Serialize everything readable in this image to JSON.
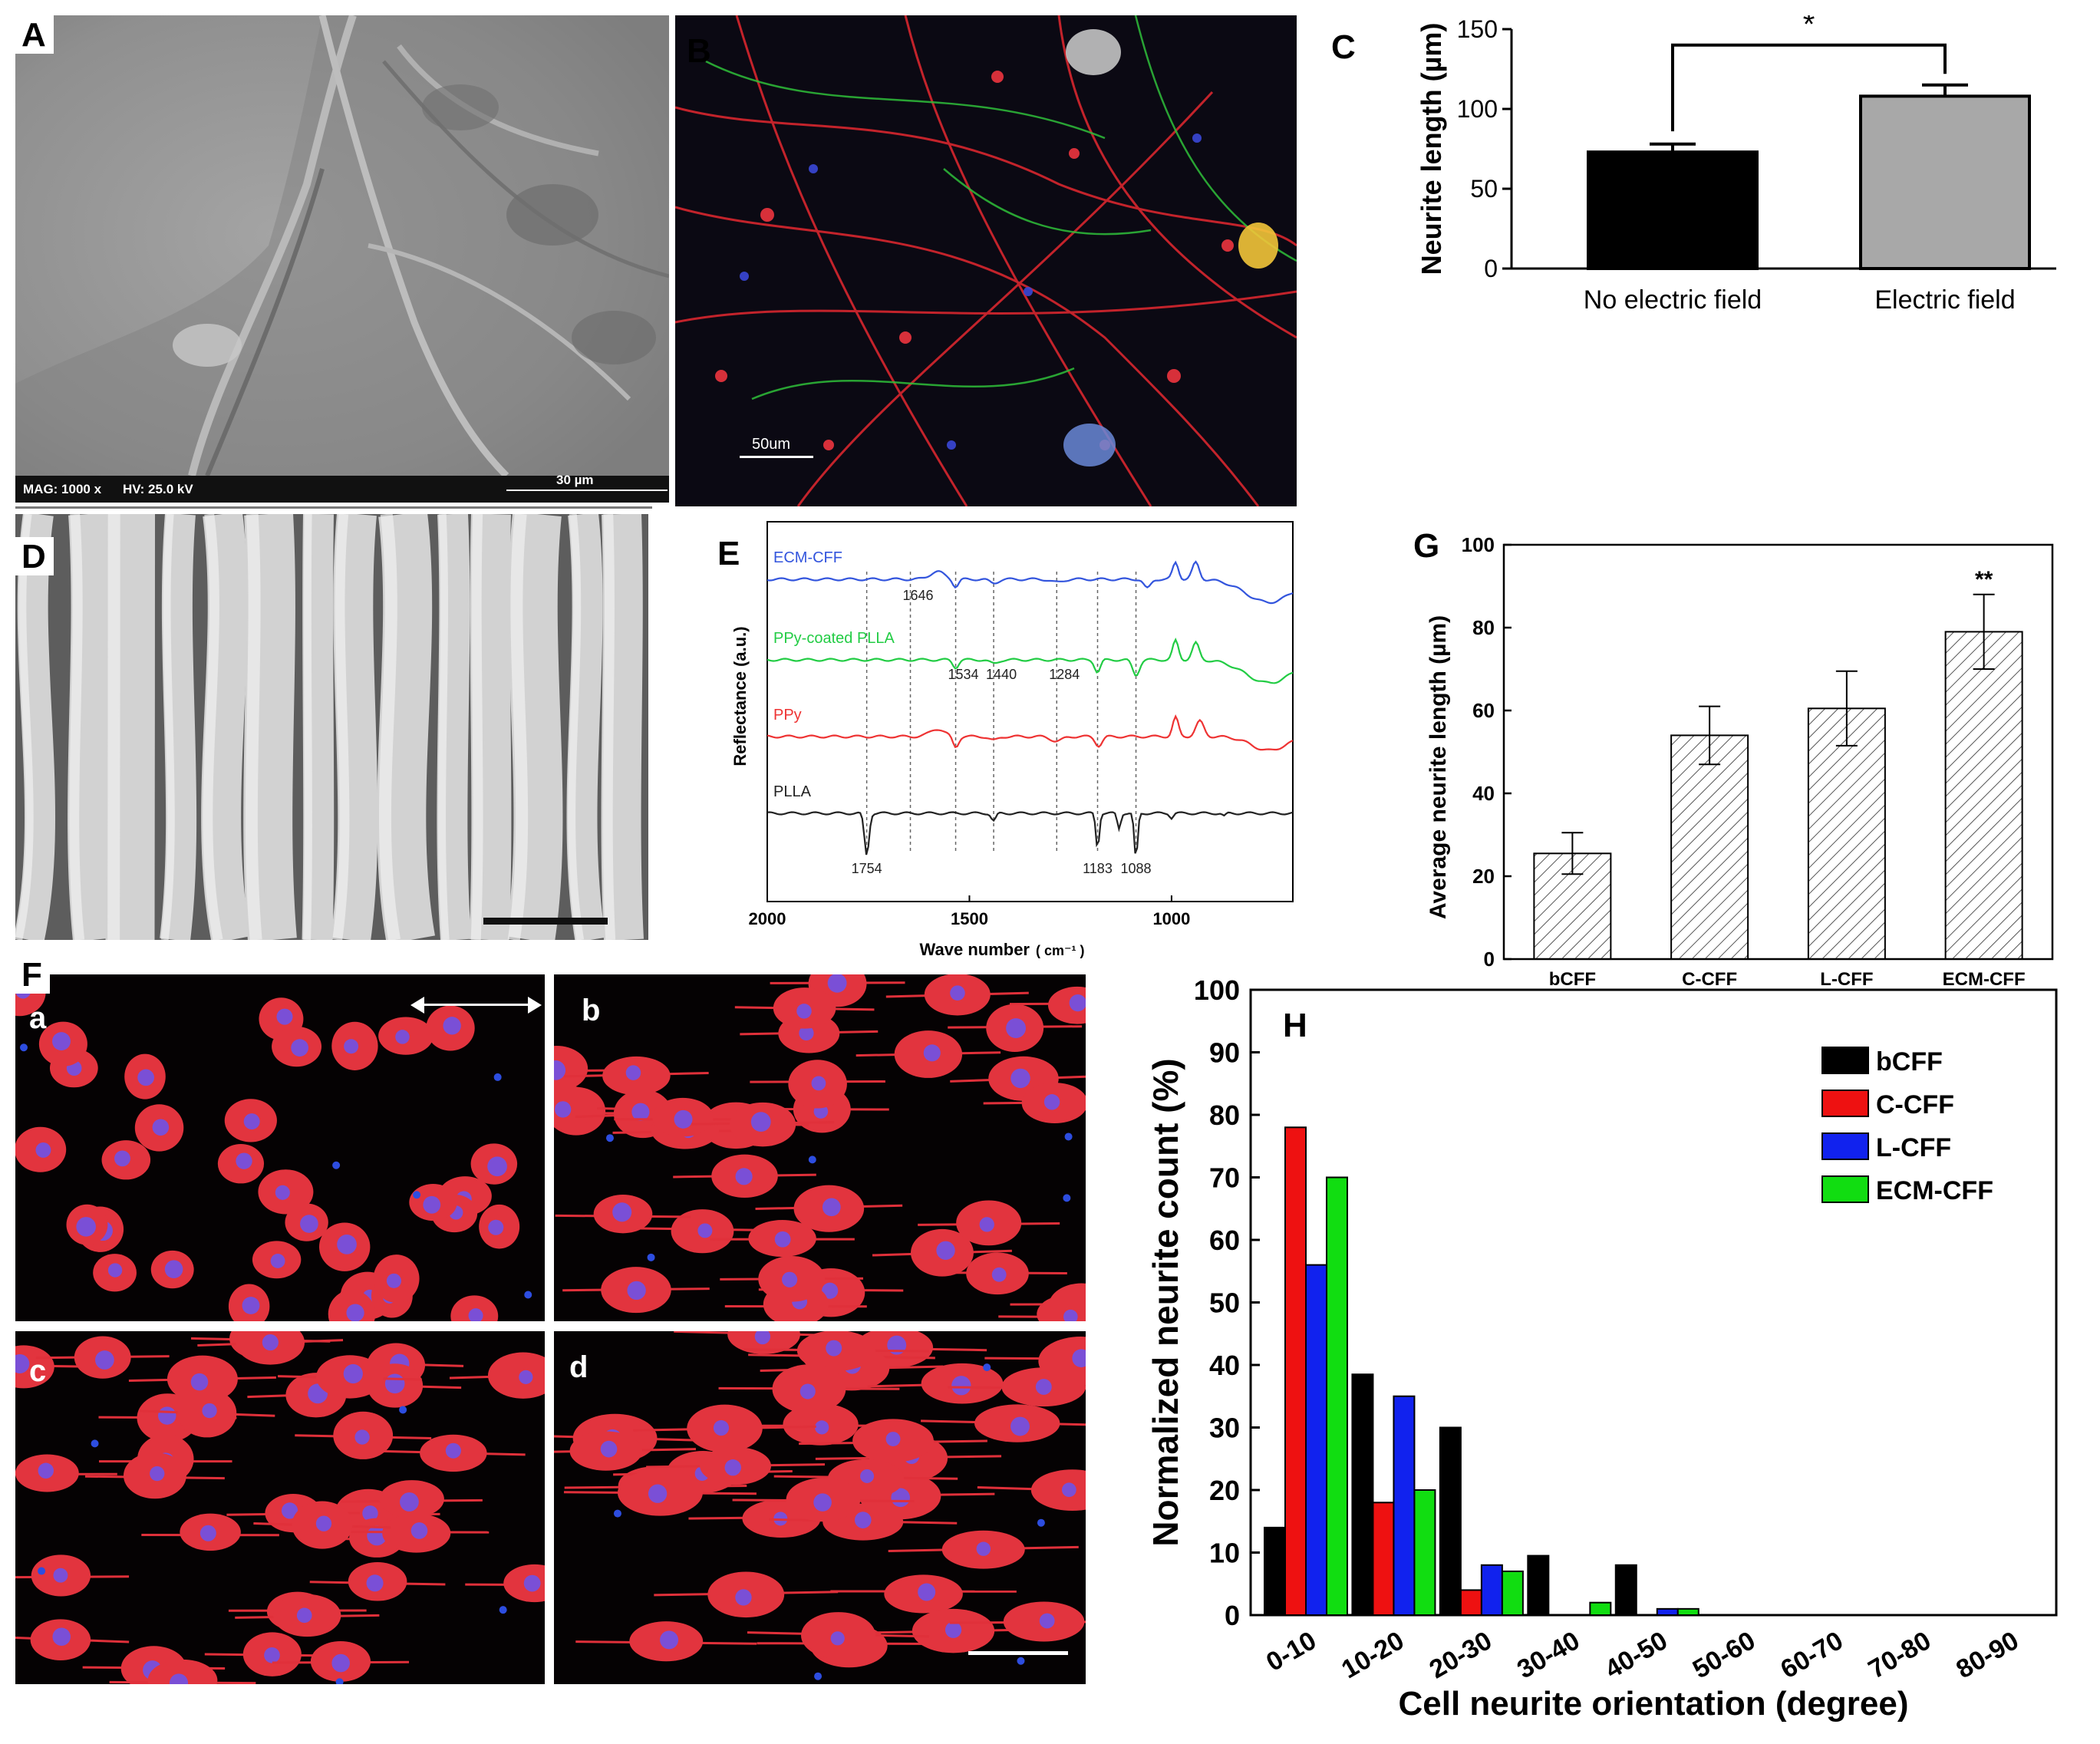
{
  "panels": {
    "A": {
      "label": "A",
      "info_bar": {
        "mag": "MAG: 1000 x",
        "hv": "HV: 25.0 kV",
        "scale": "30 µm"
      }
    },
    "B": {
      "label": "B",
      "scale": "50um"
    },
    "C": {
      "label": "C"
    },
    "D": {
      "label": "D"
    },
    "E": {
      "label": "E"
    },
    "F": {
      "label": "F",
      "subpanels": [
        "a",
        "b",
        "c",
        "d"
      ]
    },
    "G": {
      "label": "G"
    },
    "H": {
      "label": "H"
    }
  },
  "chart_data": [
    {
      "id": "C",
      "type": "bar",
      "categories": [
        "No electric field",
        "Electric field"
      ],
      "values": [
        73,
        108
      ],
      "errors": [
        5,
        7
      ],
      "colors": [
        "#000000",
        "#a8a8a8"
      ],
      "ylabel": "Neurite length (µm)",
      "ylim": [
        0,
        150
      ],
      "yticks": [
        "0",
        "50",
        "100",
        "150"
      ],
      "significance": "*"
    },
    {
      "id": "E",
      "type": "line",
      "xlabel": "Wave number",
      "xunit": "( cm⁻¹ )",
      "ylabel": "Reflectance (a.u.)",
      "xlim": [
        2000,
        700
      ],
      "xticks": [
        "2000",
        "1500",
        "1000"
      ],
      "series": [
        {
          "name": "ECM-CFF",
          "color": "#3355dd"
        },
        {
          "name": "PPy-coated PLLA",
          "color": "#22cc44"
        },
        {
          "name": "PPy",
          "color": "#ee3333"
        },
        {
          "name": "PLLA",
          "color": "#222222"
        }
      ],
      "peak_labels": [
        "1646",
        "1534",
        "1440",
        "1284",
        "1754",
        "1183",
        "1088"
      ]
    },
    {
      "id": "G",
      "type": "bar",
      "categories": [
        "bCFF",
        "C-CFF",
        "L-CFF",
        "ECM-CFF"
      ],
      "values": [
        25.5,
        54,
        60.5,
        79
      ],
      "errors": [
        5,
        7,
        9,
        9
      ],
      "ylabel": "Average neurite length (µm)",
      "ylim": [
        0,
        100
      ],
      "yticks": [
        "0",
        "20",
        "40",
        "60",
        "80",
        "100"
      ],
      "significance": "**"
    },
    {
      "id": "H",
      "type": "bar",
      "categories": [
        "0-10",
        "10-20",
        "20-30",
        "30-40",
        "40-50",
        "50-60",
        "60-70",
        "70-80",
        "80-90"
      ],
      "series": [
        {
          "name": "bCFF",
          "color": "#000000",
          "values": [
            14,
            38.5,
            30,
            9.5,
            8,
            0,
            0,
            0,
            0
          ]
        },
        {
          "name": "C-CFF",
          "color": "#ee1111",
          "values": [
            78,
            18,
            4,
            0,
            0,
            0,
            0,
            0,
            0
          ]
        },
        {
          "name": "L-CFF",
          "color": "#1122ee",
          "values": [
            56,
            35,
            8,
            0,
            1,
            0,
            0,
            0,
            0
          ]
        },
        {
          "name": "ECM-CFF",
          "color": "#11dd11",
          "values": [
            70,
            20,
            7,
            2,
            1,
            0,
            0,
            0,
            0
          ]
        }
      ],
      "xlabel": "Cell neurite orientation (degree)",
      "ylabel": "Normalized neurite count (%)",
      "ylim": [
        0,
        100
      ],
      "yticks": [
        "0",
        "10",
        "20",
        "30",
        "40",
        "50",
        "60",
        "70",
        "80",
        "90",
        "100"
      ]
    }
  ]
}
